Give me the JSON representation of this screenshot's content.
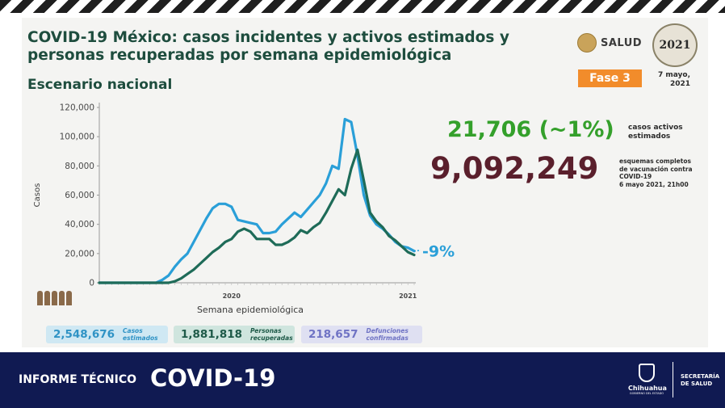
{
  "slide": {
    "title_line1": "COVID-19 México: casos incidentes y activos estimados y",
    "title_line2": "personas recuperadas por semana epidemiológica",
    "subtitle": "Escenario nacional",
    "logo_text": "SALUD",
    "seal_text": "2021",
    "phase": "Fase 3",
    "date_line1": "7 mayo,",
    "date_line2": "2021"
  },
  "stats": {
    "active_value": "21,706 (~1%)",
    "active_label_line1": "casos activos",
    "active_label_line2": "estimados",
    "vaccination_value": "9,092,249",
    "vaccination_label_lines": [
      "esquemas completos",
      "de vacunación contra",
      "COVID-19",
      "6 mayo 2021, 21h00"
    ],
    "change_label": "-9%"
  },
  "totals": [
    {
      "value": "2,548,676",
      "label_line1": "Casos",
      "label_line2": "estimados"
    },
    {
      "value": "1,881,818",
      "label_line1": "Personas",
      "label_line2": "recuperadas"
    },
    {
      "value": "218,657",
      "label_line1": "Defunciones",
      "label_line2": "confirmadas"
    }
  ],
  "footer": {
    "label": "INFORME TÉCNICO",
    "title": "COVID-19",
    "state": "Chihuahua",
    "state_sub": "GOBIERNO DEL ESTADO",
    "secretaria_line1": "SECRETARÍA",
    "secretaria_line2": "DE SALUD"
  },
  "chart_data": {
    "type": "line",
    "xlabel": "Semana epidemiológica",
    "ylabel": "Casos",
    "ylim": [
      0,
      120000
    ],
    "yticks": [
      0,
      20000,
      40000,
      60000,
      80000,
      100000,
      120000
    ],
    "ytick_labels": [
      "0",
      "20,000",
      "40,000",
      "60,000",
      "80,000",
      "100,000",
      "120,000"
    ],
    "x_year_labels": [
      {
        "index": 21,
        "label": "2020"
      },
      {
        "index": 49,
        "label": "2021"
      }
    ],
    "series": [
      {
        "color": "#2a9fd8",
        "values": [
          0,
          0,
          0,
          0,
          0,
          0,
          0,
          0,
          0,
          0,
          2000,
          5000,
          11000,
          16000,
          20000,
          28000,
          36000,
          44000,
          51000,
          54000,
          54000,
          52000,
          43000,
          42000,
          41000,
          40000,
          34000,
          34000,
          35000,
          40000,
          44000,
          48000,
          45000,
          50000,
          55000,
          60000,
          68000,
          80000,
          78000,
          112000,
          110000,
          87000,
          60000,
          46000,
          40000,
          37000,
          33000,
          28000,
          25000,
          24000,
          21706
        ]
      },
      {
        "color": "#1e6b58",
        "values": [
          0,
          0,
          0,
          0,
          0,
          0,
          0,
          0,
          0,
          0,
          0,
          0,
          1000,
          3000,
          6000,
          9000,
          13000,
          17000,
          21000,
          24000,
          28000,
          30000,
          35000,
          37000,
          35000,
          30000,
          30000,
          30000,
          26000,
          26000,
          28000,
          31000,
          36000,
          34000,
          38000,
          41000,
          48000,
          56000,
          64000,
          60000,
          78000,
          91000,
          70000,
          48000,
          42000,
          38000,
          32000,
          29000,
          25000,
          21000,
          19000
        ]
      }
    ]
  }
}
